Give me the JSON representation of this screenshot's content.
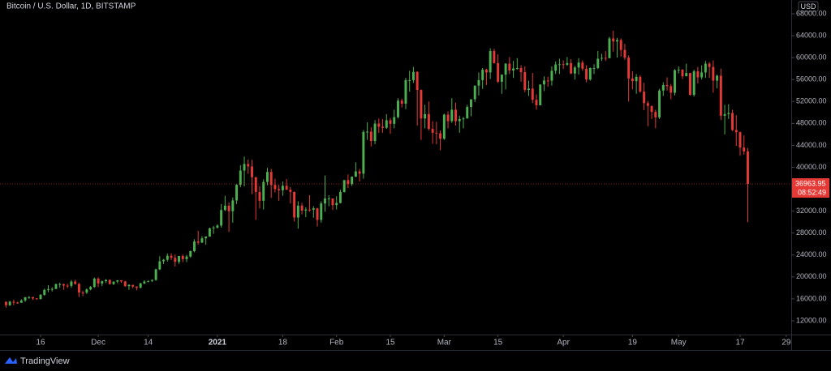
{
  "chart_data": {
    "type": "candlestick",
    "title": "Bitcoin / U.S. Dollar, 1D, BITSTAMP",
    "currency": "USD",
    "up_color": "#4caf50",
    "down_color": "#e53935",
    "grid": false,
    "xlim": [
      -1.56,
      204.3
    ],
    "ylim": [
      9490,
      70510
    ],
    "xticks": [
      {
        "value": 9,
        "label": "16"
      },
      {
        "value": 24,
        "label": "Dec"
      },
      {
        "value": 37,
        "label": "14"
      },
      {
        "value": 55,
        "label": "2021"
      },
      {
        "value": 72,
        "label": "18"
      },
      {
        "value": 86,
        "label": "Feb"
      },
      {
        "value": 100,
        "label": "15"
      },
      {
        "value": 114,
        "label": "Mar"
      },
      {
        "value": 128,
        "label": "15"
      },
      {
        "value": 145,
        "label": "Apr"
      },
      {
        "value": 163,
        "label": "19"
      },
      {
        "value": 175,
        "label": "May"
      },
      {
        "value": 191,
        "label": "17"
      },
      {
        "value": 203,
        "label": "29"
      }
    ],
    "yticks": [
      {
        "value": 12000,
        "label": "12000.00"
      },
      {
        "value": 16000,
        "label": "16000.00"
      },
      {
        "value": 20000,
        "label": "20000.00"
      },
      {
        "value": 24000,
        "label": "24000.00"
      },
      {
        "value": 28000,
        "label": "28000.00"
      },
      {
        "value": 32000,
        "label": "32000.00"
      },
      {
        "value": 40000,
        "label": "40000.00"
      },
      {
        "value": 44000,
        "label": "44000.00"
      },
      {
        "value": 48000,
        "label": "48000.00"
      },
      {
        "value": 52000,
        "label": "52000.00"
      },
      {
        "value": 56000,
        "label": "56000.00"
      },
      {
        "value": 60000,
        "label": "60000.00"
      },
      {
        "value": 64000,
        "label": "64000.00"
      },
      {
        "value": 68000,
        "label": "68000.00"
      }
    ],
    "last_price": 36963.95,
    "countdown": "08:52:49",
    "brand": "TradingView",
    "candles": [
      [
        15480,
        15500,
        14400,
        14830
      ],
      [
        14830,
        15650,
        14720,
        15480
      ],
      [
        15480,
        15850,
        14850,
        15330
      ],
      [
        15330,
        15470,
        15100,
        15300
      ],
      [
        15300,
        15950,
        15280,
        15700
      ],
      [
        15700,
        16350,
        15450,
        16280
      ],
      [
        16280,
        16480,
        15980,
        16330
      ],
      [
        16330,
        16330,
        15800,
        16070
      ],
      [
        16070,
        16140,
        15880,
        15960
      ],
      [
        15960,
        16880,
        15900,
        16730
      ],
      [
        16730,
        17850,
        16560,
        17650
      ],
      [
        17650,
        18480,
        17220,
        17800
      ],
      [
        17800,
        18120,
        17340,
        17820
      ],
      [
        17820,
        18800,
        17760,
        18680
      ],
      [
        18680,
        18950,
        18040,
        18700
      ],
      [
        18700,
        18740,
        17660,
        18420
      ],
      [
        18420,
        18770,
        18000,
        18370
      ],
      [
        18370,
        19420,
        18020,
        19160
      ],
      [
        19160,
        19490,
        18580,
        18720
      ],
      [
        18720,
        18920,
        16350,
        17150
      ],
      [
        17150,
        17460,
        16500,
        17140
      ],
      [
        17140,
        17900,
        16900,
        17720
      ],
      [
        17720,
        18350,
        17570,
        18180
      ],
      [
        18180,
        19870,
        18000,
        19700
      ],
      [
        19700,
        19920,
        18150,
        18800
      ],
      [
        18800,
        19340,
        18350,
        19220
      ],
      [
        19220,
        19600,
        18900,
        19450
      ],
      [
        19450,
        19540,
        18600,
        18700
      ],
      [
        18700,
        19170,
        18540,
        19150
      ],
      [
        19150,
        19420,
        18850,
        19380
      ],
      [
        19380,
        19400,
        18920,
        19180
      ],
      [
        19180,
        19300,
        18200,
        18320
      ],
      [
        18320,
        18650,
        17650,
        18550
      ],
      [
        18550,
        18580,
        17920,
        18250
      ],
      [
        18250,
        18270,
        17570,
        18040
      ],
      [
        18040,
        18950,
        17910,
        18810
      ],
      [
        18810,
        19400,
        18700,
        19170
      ],
      [
        19170,
        19350,
        19000,
        19280
      ],
      [
        19280,
        19570,
        19070,
        19440
      ],
      [
        19440,
        21500,
        19300,
        21380
      ],
      [
        21380,
        23780,
        21260,
        22850
      ],
      [
        22850,
        23300,
        22350,
        23130
      ],
      [
        23130,
        24300,
        22800,
        23870
      ],
      [
        23870,
        24300,
        23080,
        23480
      ],
      [
        23480,
        24100,
        21900,
        22750
      ],
      [
        22750,
        23840,
        22380,
        23820
      ],
      [
        23820,
        24100,
        22700,
        23250
      ],
      [
        23250,
        24000,
        22700,
        23720
      ],
      [
        23720,
        24790,
        23500,
        24700
      ],
      [
        24700,
        26870,
        24500,
        26460
      ],
      [
        26460,
        28400,
        25900,
        26250
      ],
      [
        26250,
        27450,
        26200,
        27040
      ],
      [
        27040,
        27400,
        25880,
        27370
      ],
      [
        27370,
        29000,
        27320,
        28850
      ],
      [
        28850,
        29300,
        27850,
        29000
      ],
      [
        29000,
        29600,
        28800,
        29370
      ],
      [
        29370,
        33300,
        29000,
        32200
      ],
      [
        32200,
        34800,
        32000,
        33000
      ],
      [
        33000,
        33600,
        28200,
        31990
      ],
      [
        31990,
        34500,
        29900,
        33950
      ],
      [
        33950,
        36900,
        33300,
        36800
      ],
      [
        36800,
        40400,
        36350,
        39400
      ],
      [
        39400,
        41950,
        36500,
        40600
      ],
      [
        40600,
        41400,
        38800,
        40150
      ],
      [
        40150,
        41350,
        35100,
        38180
      ],
      [
        38180,
        38250,
        30400,
        35500
      ],
      [
        35500,
        36600,
        32500,
        33900
      ],
      [
        33900,
        37800,
        32300,
        37320
      ],
      [
        37320,
        39900,
        36700,
        39150
      ],
      [
        39150,
        39700,
        34400,
        36770
      ],
      [
        36770,
        37900,
        35400,
        36020
      ],
      [
        36020,
        36800,
        33900,
        35800
      ],
      [
        35800,
        37400,
        34800,
        36630
      ],
      [
        36630,
        37850,
        35900,
        35900
      ],
      [
        35900,
        36400,
        33400,
        35500
      ],
      [
        35500,
        35600,
        30100,
        30840
      ],
      [
        30840,
        33800,
        28800,
        33000
      ],
      [
        33000,
        33500,
        31400,
        32100
      ],
      [
        32100,
        32700,
        30900,
        32280
      ],
      [
        32280,
        34900,
        31900,
        32250
      ],
      [
        32250,
        32900,
        30800,
        32510
      ],
      [
        32510,
        32600,
        29200,
        30400
      ],
      [
        30400,
        33800,
        29900,
        33400
      ],
      [
        33400,
        38500,
        31900,
        34300
      ],
      [
        34300,
        34900,
        32900,
        34300
      ],
      [
        34300,
        34300,
        32200,
        33100
      ],
      [
        33100,
        34700,
        32300,
        33500
      ],
      [
        33500,
        35900,
        33400,
        35500
      ],
      [
        35500,
        37700,
        35400,
        37650
      ],
      [
        37650,
        38700,
        36200,
        36950
      ],
      [
        36950,
        38300,
        36600,
        38290
      ],
      [
        38290,
        40900,
        38200,
        39250
      ],
      [
        39250,
        39700,
        37400,
        38830
      ],
      [
        38830,
        46800,
        37900,
        46450
      ],
      [
        46450,
        48200,
        45000,
        46500
      ],
      [
        46500,
        47300,
        43800,
        44800
      ],
      [
        44800,
        48600,
        44200,
        47970
      ],
      [
        47970,
        48900,
        46300,
        47400
      ],
      [
        47400,
        48800,
        46300,
        47200
      ],
      [
        47200,
        49700,
        47000,
        48580
      ],
      [
        48580,
        49000,
        46100,
        47930
      ],
      [
        47930,
        50500,
        47100,
        49150
      ],
      [
        49150,
        52600,
        48900,
        52150
      ],
      [
        52150,
        52500,
        50900,
        51600
      ],
      [
        51600,
        56300,
        50600,
        55900
      ],
      [
        55900,
        57600,
        53800,
        55900
      ],
      [
        55900,
        58300,
        55400,
        57400
      ],
      [
        57400,
        57500,
        47600,
        54100
      ],
      [
        54100,
        54200,
        45000,
        48900
      ],
      [
        48900,
        51400,
        47100,
        49700
      ],
      [
        49700,
        52000,
        46700,
        47000
      ],
      [
        47000,
        48400,
        44300,
        46300
      ],
      [
        46300,
        48300,
        44200,
        46200
      ],
      [
        46200,
        46700,
        43100,
        45200
      ],
      [
        45200,
        49800,
        45000,
        49600
      ],
      [
        49600,
        50200,
        47100,
        48400
      ],
      [
        48400,
        52600,
        48100,
        50500
      ],
      [
        50500,
        51800,
        47600,
        48400
      ],
      [
        48400,
        49400,
        46300,
        48800
      ],
      [
        48800,
        49200,
        47100,
        48900
      ],
      [
        48900,
        51400,
        48900,
        51000
      ],
      [
        51000,
        52400,
        49300,
        52400
      ],
      [
        52400,
        54900,
        51900,
        54900
      ],
      [
        54900,
        57300,
        53100,
        55900
      ],
      [
        55900,
        58100,
        54300,
        57800
      ],
      [
        57800,
        58000,
        55000,
        57300
      ],
      [
        57300,
        61700,
        56100,
        61200
      ],
      [
        61200,
        61600,
        58900,
        59000
      ],
      [
        59000,
        60600,
        55400,
        55600
      ],
      [
        55600,
        56900,
        53400,
        56900
      ],
      [
        56900,
        59000,
        54200,
        58900
      ],
      [
        58900,
        60100,
        57000,
        57650
      ],
      [
        57650,
        59400,
        56300,
        58030
      ],
      [
        58030,
        59900,
        57800,
        58100
      ],
      [
        58100,
        58600,
        55600,
        57350
      ],
      [
        57350,
        58400,
        53700,
        54100
      ],
      [
        54100,
        55800,
        53000,
        54350
      ],
      [
        54350,
        57200,
        51700,
        52300
      ],
      [
        52300,
        53300,
        50500,
        51300
      ],
      [
        51300,
        55100,
        51300,
        55100
      ],
      [
        55100,
        56600,
        53900,
        55830
      ],
      [
        55830,
        56500,
        54700,
        55800
      ],
      [
        55800,
        58400,
        54900,
        57600
      ],
      [
        57600,
        59300,
        57000,
        58750
      ],
      [
        58750,
        59800,
        57000,
        58800
      ],
      [
        58800,
        59500,
        57900,
        58700
      ],
      [
        58700,
        60100,
        58500,
        59000
      ],
      [
        59000,
        59700,
        57000,
        57100
      ],
      [
        57100,
        58500,
        56000,
        58200
      ],
      [
        58200,
        59900,
        56900,
        59100
      ],
      [
        59100,
        59500,
        57600,
        57980
      ],
      [
        57980,
        58600,
        55500,
        56000
      ],
      [
        56000,
        58200,
        55800,
        58100
      ],
      [
        58100,
        58800,
        57000,
        58100
      ],
      [
        58100,
        61200,
        57900,
        59800
      ],
      [
        59800,
        60700,
        59400,
        59950
      ],
      [
        59950,
        61200,
        59400,
        59900
      ],
      [
        59900,
        63800,
        59900,
        63500
      ],
      [
        63500,
        64900,
        61100,
        62950
      ],
      [
        62950,
        63600,
        60000,
        63200
      ],
      [
        63200,
        63500,
        60200,
        61400
      ],
      [
        61400,
        62500,
        59600,
        60000
      ],
      [
        60000,
        60400,
        52000,
        56200
      ],
      [
        56200,
        57500,
        54200,
        55700
      ],
      [
        55700,
        57000,
        53400,
        56500
      ],
      [
        56500,
        56800,
        53600,
        53800
      ],
      [
        53800,
        55400,
        50400,
        51700
      ],
      [
        51700,
        52100,
        47500,
        51200
      ],
      [
        51200,
        51200,
        48800,
        50100
      ],
      [
        50100,
        50500,
        47100,
        49100
      ],
      [
        49100,
        54300,
        48800,
        54000
      ],
      [
        54000,
        55500,
        53000,
        55000
      ],
      [
        55000,
        56400,
        54000,
        54800
      ],
      [
        54800,
        55200,
        52400,
        53600
      ],
      [
        53600,
        57900,
        53100,
        57700
      ],
      [
        57700,
        58400,
        57100,
        57800
      ],
      [
        57800,
        57900,
        56100,
        56600
      ],
      [
        56600,
        58900,
        56600,
        57200
      ],
      [
        57200,
        57200,
        53100,
        53200
      ],
      [
        53200,
        57800,
        52900,
        57500
      ],
      [
        57500,
        58300,
        55300,
        56400
      ],
      [
        56400,
        58600,
        56000,
        57300
      ],
      [
        57300,
        59400,
        56300,
        58900
      ],
      [
        58900,
        59200,
        56300,
        58300
      ],
      [
        58300,
        59500,
        53600,
        55800
      ],
      [
        55800,
        56900,
        54400,
        56700
      ],
      [
        56700,
        58000,
        48600,
        49400
      ],
      [
        49400,
        51400,
        46000,
        49700
      ],
      [
        49700,
        51500,
        48800,
        49900
      ],
      [
        49900,
        50500,
        46600,
        46800
      ],
      [
        46800,
        49500,
        43900,
        46400
      ],
      [
        46400,
        46500,
        42100,
        43600
      ],
      [
        43600,
        45800,
        42300,
        42900
      ],
      [
        42900,
        43500,
        30000,
        36963.95
      ]
    ]
  }
}
